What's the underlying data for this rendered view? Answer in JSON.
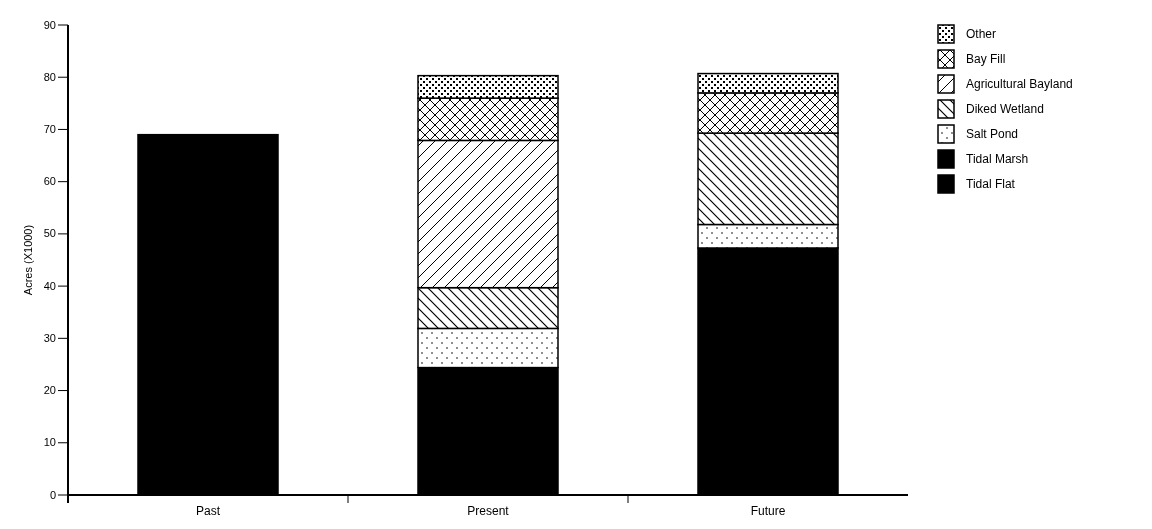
{
  "chart_data": {
    "type": "bar",
    "stacked": true,
    "ylabel": "Acres (X1000)",
    "categories": [
      "Past",
      "Present",
      "Future"
    ],
    "series": [
      {
        "name": "Tidal Flat",
        "color": "#000000",
        "values": [
          69,
          24.4,
          47.3
        ]
      },
      {
        "name": "Tidal Marsh",
        "color": "#000000",
        "values": [
          null,
          null,
          null
        ]
      },
      {
        "name": "Salt Pond",
        "color": "#000000",
        "values": [
          null,
          7.5,
          4.5
        ]
      },
      {
        "name": "Diked Wetland",
        "color": "#000000",
        "values": [
          null,
          7.8,
          17.5
        ]
      },
      {
        "name": "Agricultural Bayland",
        "color": "#000000",
        "values": [
          null,
          28.2,
          null
        ]
      },
      {
        "name": "Bay Fill",
        "color": "#000000",
        "values": [
          null,
          8.1,
          7.7
        ]
      },
      {
        "name": "Other",
        "color": "#000000",
        "values": [
          null,
          4.3,
          3.7
        ]
      }
    ],
    "ylim": [
      0,
      90
    ],
    "yticks": [
      0,
      10,
      20,
      30,
      40,
      50,
      60,
      70,
      80,
      90
    ],
    "legend": "right"
  }
}
